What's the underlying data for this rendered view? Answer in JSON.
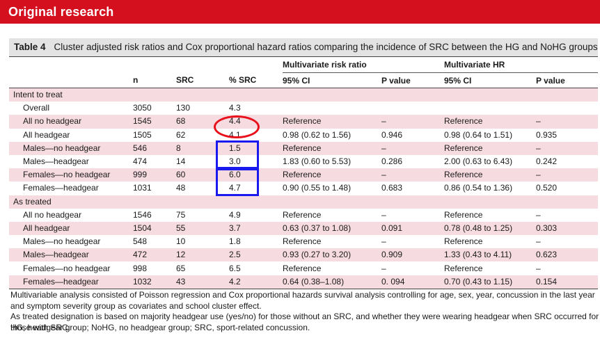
{
  "banner": {
    "title": "Original research"
  },
  "table": {
    "label": "Table 4",
    "title": "Cluster adjusted risk ratios and Cox proportional hazard ratios comparing the incidence of SRC between the HG and NoHG groups",
    "group_headers": {
      "risk_ratio": "Multivariate risk ratio",
      "hr": "Multivariate HR"
    },
    "columns": [
      "",
      "n",
      "SRC",
      "% SRC",
      "95% CI",
      "P value",
      "95% CI",
      "P value"
    ],
    "sections": [
      {
        "title": "Intent to treat",
        "rows": [
          {
            "label": "Overall",
            "n": "3050",
            "src": "130",
            "pct": "4.3",
            "rr_ci": "",
            "rr_p": "",
            "hr_ci": "",
            "hr_p": ""
          },
          {
            "label": "All no headgear",
            "n": "1545",
            "src": "68",
            "pct": "4.4",
            "rr_ci": "Reference",
            "rr_p": "–",
            "hr_ci": "Reference",
            "hr_p": "–"
          },
          {
            "label": "All headgear",
            "n": "1505",
            "src": "62",
            "pct": "4.1",
            "rr_ci": "0.98 (0.62 to 1.56)",
            "rr_p": "0.946",
            "hr_ci": "0.98 (0.64 to 1.51)",
            "hr_p": "0.935"
          },
          {
            "label": "Males—no headgear",
            "n": "546",
            "src": "8",
            "pct": "1.5",
            "rr_ci": "Reference",
            "rr_p": "–",
            "hr_ci": "Reference",
            "hr_p": "–"
          },
          {
            "label": "Males—headgear",
            "n": "474",
            "src": "14",
            "pct": "3.0",
            "rr_ci": "1.83 (0.60 to 5.53)",
            "rr_p": "0.286",
            "hr_ci": "2.00 (0.63 to 6.43)",
            "hr_p": "0.242"
          },
          {
            "label": "Females—no headgear",
            "n": "999",
            "src": "60",
            "pct": "6.0",
            "rr_ci": "Reference",
            "rr_p": "–",
            "hr_ci": "Reference",
            "hr_p": "–"
          },
          {
            "label": "Females—headgear",
            "n": "1031",
            "src": "48",
            "pct": "4.7",
            "rr_ci": "0.90 (0.55 to 1.48)",
            "rr_p": "0.683",
            "hr_ci": "0.86 (0.54 to 1.36)",
            "hr_p": "0.520"
          }
        ]
      },
      {
        "title": "As treated",
        "rows": [
          {
            "label": "All no headgear",
            "n": "1546",
            "src": "75",
            "pct": "4.9",
            "rr_ci": "Reference",
            "rr_p": "–",
            "hr_ci": "Reference",
            "hr_p": "–"
          },
          {
            "label": "All headgear",
            "n": "1504",
            "src": "55",
            "pct": "3.7",
            "rr_ci": "0.63 (0.37 to 1.08)",
            "rr_p": "0.091",
            "hr_ci": "0.78 (0.48 to 1.25)",
            "hr_p": "0.303"
          },
          {
            "label": "Males—no headgear",
            "n": "548",
            "src": "10",
            "pct": "1.8",
            "rr_ci": "Reference",
            "rr_p": "–",
            "hr_ci": "Reference",
            "hr_p": "–"
          },
          {
            "label": "Males—headgear",
            "n": "472",
            "src": "12",
            "pct": "2.5",
            "rr_ci": "0.93 (0.27 to 3.20)",
            "rr_p": "0.909",
            "hr_ci": "1.33 (0.43 to 4.11)",
            "hr_p": "0.623"
          },
          {
            "label": "Females—no headgear",
            "n": "998",
            "src": "65",
            "pct": "6.5",
            "rr_ci": "Reference",
            "rr_p": "–",
            "hr_ci": "Reference",
            "hr_p": "–"
          },
          {
            "label": "Females—headgear",
            "n": "1032",
            "src": "43",
            "pct": "4.2",
            "rr_ci": "0.64 (0.38–1.08)",
            "rr_p": "0. 094",
            "hr_ci": "0.70 (0.43 to 1.15)",
            "hr_p": "0.154"
          }
        ]
      }
    ]
  },
  "footnotes": [
    "Multivariable analysis consisted of Poisson regression and Cox proportional hazards survival analysis controlling for age, sex, year, concussion in the last year and symptom severity group as covariates and school cluster effect.",
    "As treated designation is based on majority headgear use (yes/no) for those without an SRC, and whether they were wearing headgear when SRC occurred for those with SRC.",
    "HG, headgear group; NoHG, no headgear group; SRC, sport-related concussion."
  ],
  "colors": {
    "banner": "#d4101f",
    "row_highlight": "#f6dbe1",
    "caption_bg": "#e3e3e3",
    "annotation_ellipse": "#e8101a",
    "annotation_box": "#1a1aee"
  }
}
